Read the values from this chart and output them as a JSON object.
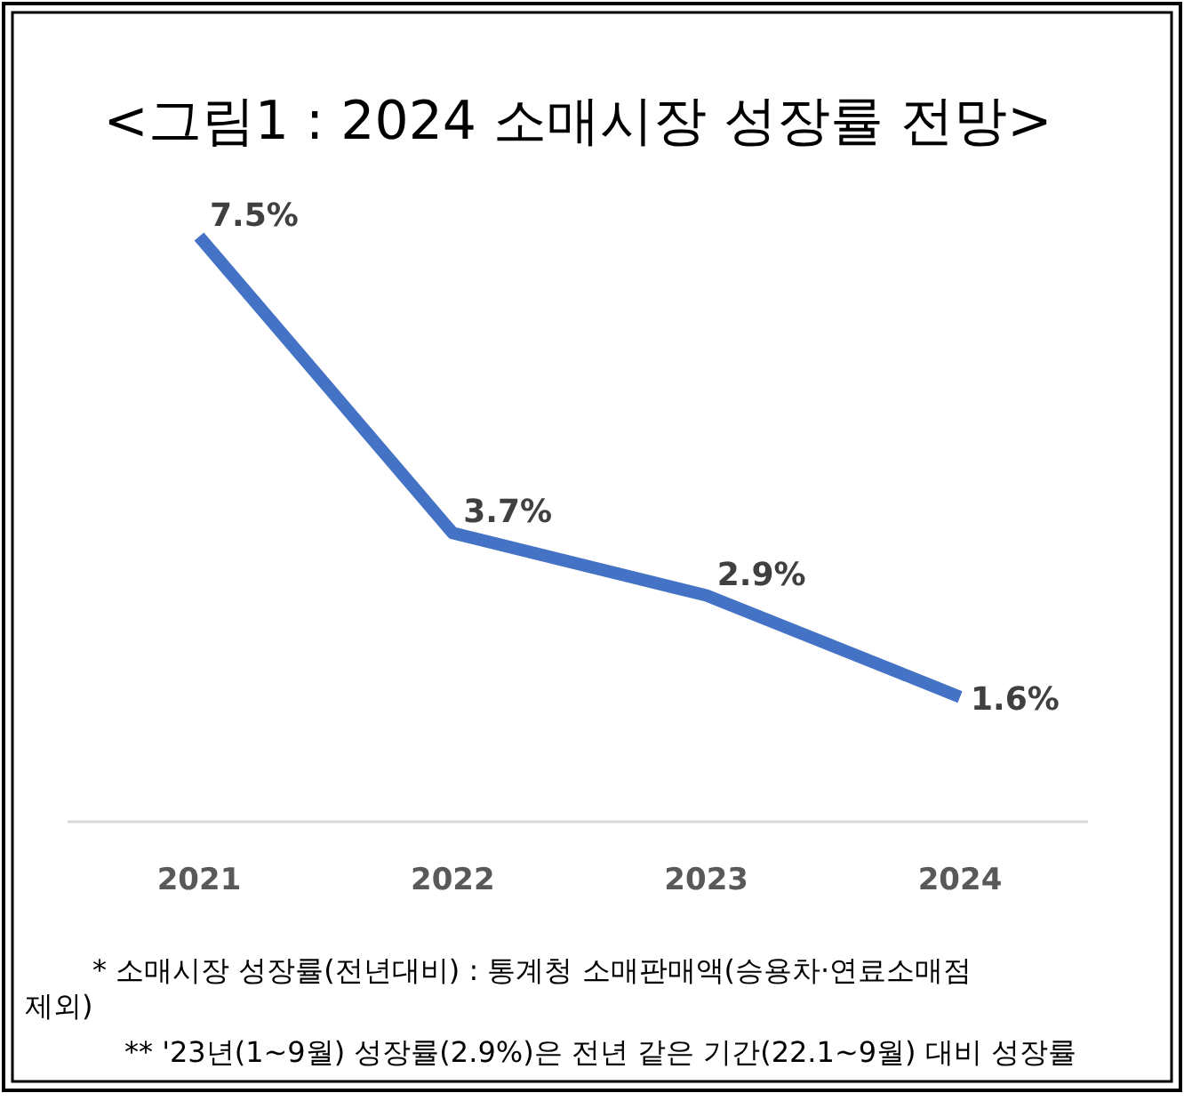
{
  "chart_data": {
    "type": "line",
    "title": "<그림1 : 2024 소매시장 성장률 전망>",
    "categories": [
      "2021",
      "2022",
      "2023",
      "2024"
    ],
    "series": [
      {
        "color": "#4472c4",
        "values": [
          7.5,
          3.7,
          2.9,
          1.6
        ],
        "value_labels": [
          "7.5%",
          "3.7%",
          "2.9%",
          "1.6%"
        ]
      }
    ],
    "marker": "none",
    "line_style": "solid",
    "annotations": [
      "* 소매시장 성장률(전년대비) : 통계청 소매판매액(승용차·연료소매점 제외)",
      "** '23년(1~9월) 성장률(2.9%)은 전년 같은 기간(22.1~9월) 대비 성장률"
    ]
  }
}
